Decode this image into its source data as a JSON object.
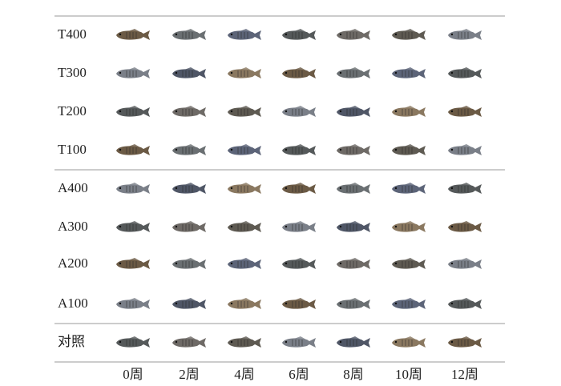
{
  "figure": {
    "rows": [
      "T400",
      "T300",
      "T200",
      "T100",
      "A400",
      "A300",
      "A200",
      "A100",
      "对照"
    ],
    "columns": [
      "0周",
      "2周",
      "4周",
      "6周",
      "8周",
      "10周",
      "12周"
    ]
  }
}
